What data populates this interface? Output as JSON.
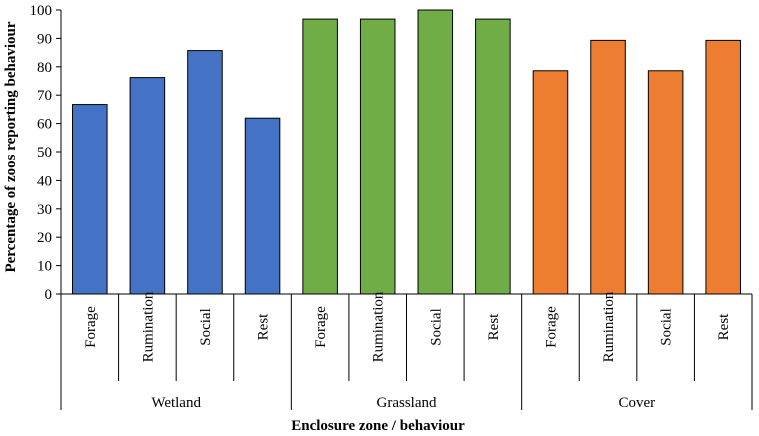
{
  "chart_data": {
    "type": "bar",
    "xlabel": "Enclosure zone / behaviour",
    "ylabel": "Percentage of zoos reporting behaviour",
    "ylim": [
      0,
      100
    ],
    "yticks": [
      0,
      10,
      20,
      30,
      40,
      50,
      60,
      70,
      80,
      90,
      100
    ],
    "grid": false,
    "legend": "none",
    "groups": [
      {
        "name": "Wetland",
        "color": "#4472C4",
        "categories": [
          "Forage",
          "Rumination",
          "Social",
          "Rest"
        ],
        "values": [
          66.7,
          76.2,
          85.7,
          61.9
        ]
      },
      {
        "name": "Grassland",
        "color": "#70AD47",
        "categories": [
          "Forage",
          "Rumination",
          "Social",
          "Rest"
        ],
        "values": [
          96.8,
          96.8,
          100,
          96.8
        ]
      },
      {
        "name": "Cover",
        "color": "#ED7D31",
        "categories": [
          "Forage",
          "Rumination",
          "Social",
          "Rest"
        ],
        "values": [
          78.6,
          89.3,
          78.6,
          89.3
        ]
      }
    ]
  }
}
